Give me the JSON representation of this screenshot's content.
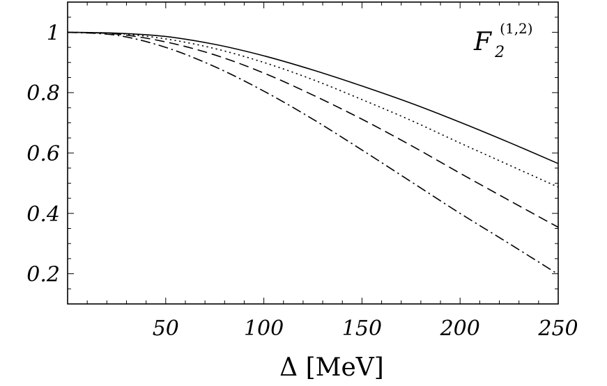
{
  "chart_data": {
    "type": "line",
    "title": "",
    "xlabel": "Δ  [MeV]",
    "ylabel": "",
    "xlim": [
      0,
      250
    ],
    "ylim": [
      0.1,
      1.1
    ],
    "xticks": [
      50,
      100,
      150,
      200,
      250
    ],
    "xtick_labels": [
      "50",
      "100",
      "150",
      "200",
      "250"
    ],
    "yticks": [
      0.2,
      0.4,
      0.6,
      0.8,
      1.0
    ],
    "ytick_labels": [
      "0.2",
      "0.4",
      "0.6",
      "0.8",
      "1"
    ],
    "grid": false,
    "annotation": {
      "base": "F",
      "sub": "2",
      "sup": "(1,2)"
    },
    "x": [
      0,
      25,
      50,
      75,
      100,
      125,
      150,
      175,
      200,
      225,
      250
    ],
    "series": [
      {
        "style": "solid",
        "values": [
          1.0,
          0.997,
          0.986,
          0.96,
          0.922,
          0.875,
          0.822,
          0.765,
          0.702,
          0.635,
          0.565
        ]
      },
      {
        "style": "dotted",
        "values": [
          1.0,
          0.996,
          0.978,
          0.946,
          0.9,
          0.843,
          0.777,
          0.708,
          0.633,
          0.56,
          0.487
        ]
      },
      {
        "style": "dashed",
        "values": [
          1.0,
          0.994,
          0.968,
          0.925,
          0.865,
          0.792,
          0.712,
          0.625,
          0.533,
          0.443,
          0.354
        ]
      },
      {
        "style": "dashdot",
        "values": [
          1.0,
          0.99,
          0.95,
          0.886,
          0.805,
          0.712,
          0.61,
          0.505,
          0.4,
          0.3,
          0.198
        ]
      }
    ]
  }
}
